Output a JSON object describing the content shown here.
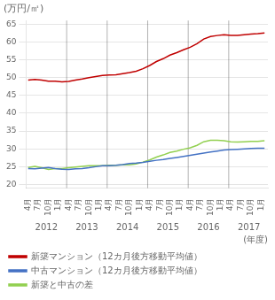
{
  "chart_data": {
    "type": "line",
    "ylabel": "(万円/㎡)",
    "xlabel": "(年度)",
    "annotations": [
      "2012",
      "2013",
      "2014",
      "2015",
      "2016",
      "2017"
    ],
    "x": [
      0,
      1,
      2,
      3,
      4,
      5,
      6,
      7,
      8,
      9,
      10,
      11,
      12,
      13,
      14,
      15,
      16,
      17,
      18,
      19,
      20,
      21,
      22,
      23,
      24,
      25,
      26,
      27,
      28,
      29,
      30,
      31,
      32,
      33,
      34,
      35
    ],
    "series": [
      {
        "name": "新築マンション（12カ月後方移動平均値）",
        "color": "#C00000",
        "values": [
          49.3,
          49.5,
          49.3,
          49.0,
          49.0,
          48.8,
          48.9,
          49.3,
          49.6,
          50.0,
          50.3,
          50.6,
          50.7,
          50.8,
          51.1,
          51.4,
          51.8,
          52.5,
          53.4,
          54.5,
          55.3,
          56.3,
          57.0,
          57.8,
          58.5,
          59.5,
          60.8,
          61.5,
          61.8,
          62.0,
          61.8,
          61.8,
          62.0,
          62.2,
          62.3,
          62.5
        ]
      },
      {
        "name": "中古マンション（12カ月後方移動平均値）",
        "color": "#4472C4",
        "values": [
          24.5,
          24.4,
          24.6,
          24.8,
          24.5,
          24.3,
          24.2,
          24.4,
          24.5,
          24.7,
          25.0,
          25.3,
          25.3,
          25.4,
          25.6,
          25.9,
          26.0,
          26.2,
          26.5,
          26.8,
          27.0,
          27.3,
          27.6,
          27.9,
          28.2,
          28.5,
          28.8,
          29.1,
          29.4,
          29.7,
          29.8,
          29.9,
          30.0,
          30.1,
          30.2,
          30.2
        ]
      },
      {
        "name": "新築と中古の差",
        "color": "#92D050",
        "values": [
          24.8,
          25.1,
          24.7,
          24.2,
          24.5,
          24.5,
          24.7,
          24.9,
          25.1,
          25.3,
          25.3,
          25.3,
          25.4,
          25.4,
          25.5,
          25.5,
          25.8,
          26.3,
          26.9,
          27.7,
          28.3,
          29.0,
          29.4,
          29.9,
          30.3,
          31.0,
          32.0,
          32.4,
          32.4,
          32.3,
          32.0,
          31.9,
          32.0,
          32.1,
          32.1,
          32.3
        ]
      }
    ],
    "xlim": [
      -0.3,
      35.5
    ],
    "xticks": [
      {
        "value": 0,
        "label": "4月"
      },
      {
        "value": 1.5,
        "label": "7月"
      },
      {
        "value": 3,
        "label": "10月"
      },
      {
        "value": 4.5,
        "label": "1月"
      },
      {
        "value": 6,
        "label": "4月"
      },
      {
        "value": 7.5,
        "label": "7月"
      },
      {
        "value": 9,
        "label": "10月"
      },
      {
        "value": 10.5,
        "label": "1月"
      },
      {
        "value": 12,
        "label": "4月"
      },
      {
        "value": 13.5,
        "label": "7月"
      },
      {
        "value": 15,
        "label": "10月"
      },
      {
        "value": 16.5,
        "label": "1月"
      },
      {
        "value": 18,
        "label": "4月"
      },
      {
        "value": 19.5,
        "label": "7月"
      },
      {
        "value": 21,
        "label": "10月"
      },
      {
        "value": 22.5,
        "label": "1月"
      },
      {
        "value": 24,
        "label": "4月"
      },
      {
        "value": 25.5,
        "label": "7月"
      },
      {
        "value": 27,
        "label": "10月"
      },
      {
        "value": 28.5,
        "label": "1月"
      },
      {
        "value": 30,
        "label": "4月"
      },
      {
        "value": 31.5,
        "label": "7月"
      },
      {
        "value": 33,
        "label": "10月"
      },
      {
        "value": 34.5,
        "label": "1月"
      }
    ],
    "ylim": [
      19,
      66
    ],
    "yticks": [
      20,
      25,
      30,
      35,
      40,
      45,
      50,
      55,
      60,
      65
    ],
    "grid": "y",
    "legend": "bottom"
  }
}
